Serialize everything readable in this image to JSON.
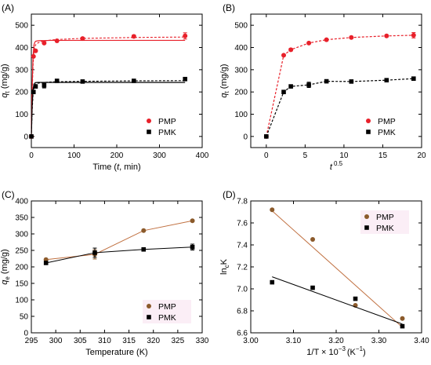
{
  "colors": {
    "pmp": "#e8202a",
    "pmk": "#000000",
    "pmp_brown": "#8b5a2b",
    "line_brown": "#c07040",
    "frame": "#000000"
  },
  "chart_data": [
    {
      "panel": "(A)",
      "type": "scatter",
      "xlabel_main": "Time (",
      "xlabel_var": "t",
      "xlabel_end": ", min)",
      "ylabel_var": "q",
      "ylabel_sub": "t",
      "ylabel_unit": " (mg/g)",
      "xlim": [
        0,
        400
      ],
      "ylim": [
        -50,
        550
      ],
      "xticks": [
        "0",
        "100",
        "200",
        "300",
        "400"
      ],
      "xtick_values": [
        0,
        100,
        200,
        300,
        400
      ],
      "yticks": [
        "0",
        "100",
        "200",
        "300",
        "400",
        "500"
      ],
      "ytick_values": [
        0,
        100,
        200,
        300,
        400,
        500
      ],
      "legend_position": "bottom-right",
      "series": [
        {
          "name": "PMP",
          "marker": "circle",
          "color": "#e8202a",
          "x": [
            0,
            5,
            10,
            30,
            60,
            120,
            240,
            360
          ],
          "y": [
            0,
            360,
            385,
            420,
            430,
            440,
            450,
            452
          ],
          "err": [
            0,
            0,
            0,
            0,
            0,
            6,
            6,
            14
          ],
          "fit_solid": {
            "x": [
              0,
              2,
              4,
              6,
              8,
              10,
              15,
              20,
              30,
              45,
              60,
              120,
              240,
              360
            ],
            "y": [
              0,
              230,
              360,
              410,
              423,
              428,
              430,
              431,
              431,
              432,
              432,
              432,
              432,
              432
            ]
          },
          "fit_dashed": {
            "x": [
              0,
              2,
              4,
              6,
              8,
              10,
              15,
              20,
              30,
              45,
              60,
              120,
              240,
              360
            ],
            "y": [
              0,
              200,
              320,
              380,
              402,
              412,
              420,
              425,
              430,
              433,
              436,
              441,
              445,
              447
            ]
          }
        },
        {
          "name": "PMK",
          "marker": "square",
          "color": "#000000",
          "x": [
            0,
            5,
            10,
            30,
            60,
            120,
            240,
            360
          ],
          "y": [
            0,
            200,
            225,
            230,
            250,
            247,
            250,
            258
          ],
          "err": [
            0,
            0,
            0,
            12,
            0,
            0,
            0,
            0
          ],
          "fit_solid": {
            "x": [
              0,
              2,
              4,
              6,
              8,
              10,
              15,
              20,
              30,
              45,
              60,
              120,
              240,
              360
            ],
            "y": [
              0,
              140,
              210,
              235,
              240,
              242,
              243,
              243,
              243,
              243,
              243,
              243,
              243,
              243
            ]
          },
          "fit_dashed": {
            "x": [
              0,
              2,
              4,
              6,
              8,
              10,
              15,
              20,
              30,
              45,
              60,
              120,
              240,
              360
            ],
            "y": [
              0,
              120,
              190,
              220,
              230,
              235,
              239,
              241,
              243,
              245,
              246,
              248,
              250,
              251
            ]
          }
        }
      ]
    },
    {
      "panel": "(B)",
      "type": "scatter",
      "xlabel_var": "t",
      "xlabel_sup": "0.5",
      "ylabel_var": "q",
      "ylabel_sub": "t",
      "ylabel_unit": " (mg/g)",
      "xlim": [
        -2,
        20
      ],
      "ylim": [
        -50,
        550
      ],
      "xticks": [
        "0",
        "5",
        "10",
        "15",
        "20"
      ],
      "xtick_values": [
        0,
        5,
        10,
        15,
        20
      ],
      "yticks": [
        "0",
        "100",
        "200",
        "300",
        "400",
        "500"
      ],
      "ytick_values": [
        0,
        100,
        200,
        300,
        400,
        500
      ],
      "legend_position": "bottom-right",
      "series": [
        {
          "name": "PMP",
          "marker": "circle",
          "color": "#e8202a",
          "x": [
            0,
            2.24,
            3.16,
            5.48,
            7.75,
            10.95,
            15.49,
            18.97
          ],
          "y": [
            0,
            365,
            390,
            420,
            435,
            445,
            452,
            455
          ],
          "err": [
            0,
            0,
            6,
            0,
            0,
            0,
            0,
            12
          ]
        },
        {
          "name": "PMK",
          "marker": "square",
          "color": "#000000",
          "x": [
            0,
            2.24,
            3.16,
            5.48,
            7.75,
            10.95,
            15.49,
            18.97
          ],
          "y": [
            0,
            200,
            225,
            232,
            248,
            247,
            253,
            260
          ],
          "err": [
            0,
            0,
            0,
            12,
            0,
            0,
            0,
            0
          ]
        }
      ]
    },
    {
      "panel": "(C)",
      "type": "line",
      "xlabel": "Temperature (K)",
      "ylabel_var": "q",
      "ylabel_sub": "e",
      "ylabel_unit": " (mg/g)",
      "xlim": [
        295,
        330
      ],
      "ylim": [
        0,
        400
      ],
      "xticks": [
        "295",
        "300",
        "305",
        "310",
        "315",
        "320",
        "325",
        "330"
      ],
      "xtick_values": [
        295,
        300,
        305,
        310,
        315,
        320,
        325,
        330
      ],
      "yticks": [
        "0",
        "50",
        "100",
        "150",
        "200",
        "250",
        "300",
        "350",
        "400"
      ],
      "ytick_values": [
        0,
        50,
        100,
        150,
        200,
        250,
        300,
        350,
        400
      ],
      "legend_position": "bottom-right",
      "series": [
        {
          "name": "PMP",
          "marker": "circle",
          "color": "#8b5a2b",
          "line_color": "#c07040",
          "x": [
            298,
            308,
            318,
            328
          ],
          "y": [
            222,
            238,
            310,
            340
          ],
          "err": [
            0,
            14,
            0,
            0
          ]
        },
        {
          "name": "PMK",
          "marker": "square",
          "color": "#000000",
          "line_color": "#000000",
          "x": [
            298,
            308,
            318,
            328
          ],
          "y": [
            212,
            243,
            253,
            260
          ],
          "err": [
            0,
            14,
            0,
            9
          ]
        }
      ]
    },
    {
      "panel": "(D)",
      "type": "scatter",
      "xlabel": "1/T × 10",
      "xlabel_sup1": "−3",
      "xlabel_mid": "(K",
      "xlabel_sup2": "−1",
      "xlabel_end": ")",
      "ylabel_main": "ln",
      "ylabel_sub": "c",
      "ylabel_end": "K",
      "xlim": [
        3.0,
        3.4
      ],
      "ylim": [
        6.6,
        7.8
      ],
      "xticks": [
        "3.00",
        "3.10",
        "3.20",
        "3.30",
        "3.40"
      ],
      "xtick_values": [
        3.0,
        3.1,
        3.2,
        3.3,
        3.4
      ],
      "yticks": [
        "6.6",
        "6.8",
        "7.0",
        "7.2",
        "7.4",
        "7.6",
        "7.8"
      ],
      "ytick_values": [
        6.6,
        6.8,
        7.0,
        7.2,
        7.4,
        7.6,
        7.8
      ],
      "legend_position": "top-right",
      "series": [
        {
          "name": "PMP",
          "marker": "circle",
          "color": "#8b5a2b",
          "line_color": "#c07040",
          "x": [
            3.05,
            3.145,
            3.245,
            3.355
          ],
          "y": [
            7.72,
            7.45,
            6.85,
            6.73
          ],
          "fit": {
            "x": [
              3.05,
              3.355
            ],
            "y": [
              7.71,
              6.65
            ]
          }
        },
        {
          "name": "PMK",
          "marker": "square",
          "color": "#000000",
          "line_color": "#000000",
          "x": [
            3.05,
            3.145,
            3.245,
            3.355
          ],
          "y": [
            7.06,
            7.01,
            6.91,
            6.66
          ],
          "fit": {
            "x": [
              3.05,
              3.355
            ],
            "y": [
              7.11,
              6.68
            ]
          }
        }
      ]
    }
  ]
}
